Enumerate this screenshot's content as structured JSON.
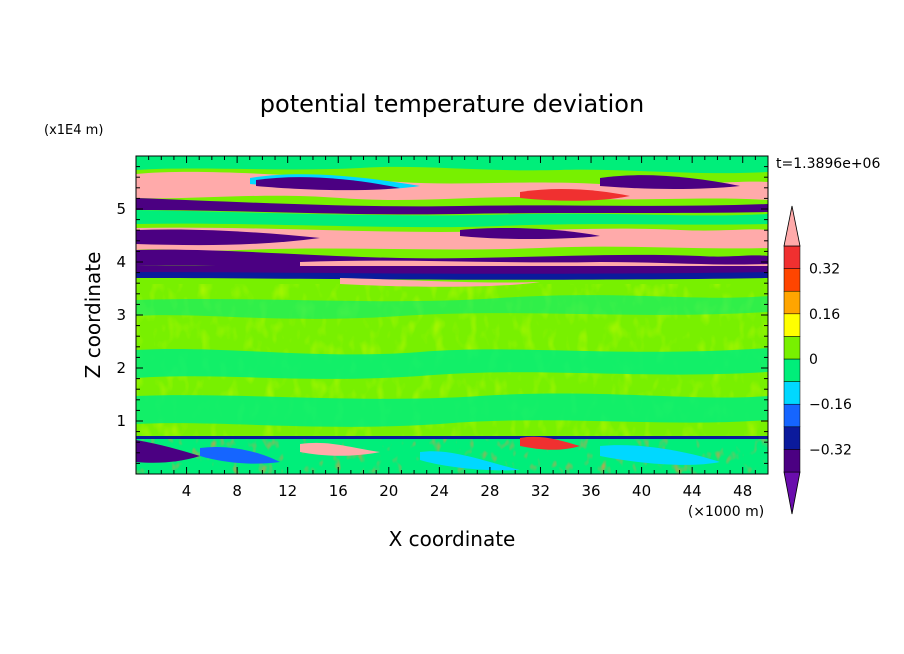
{
  "chart_data": {
    "type": "heatmap",
    "title": "potential temperature deviation",
    "xlabel": "X coordinate",
    "ylabel": "Z coordinate",
    "x_units": "(×1000 m)",
    "y_units": "(x1E4 m)",
    "time_label": "t=1.3896e+06",
    "xlim": [
      0,
      50
    ],
    "ylim": [
      0,
      6
    ],
    "x_ticks": [
      4,
      8,
      12,
      16,
      20,
      24,
      28,
      32,
      36,
      40,
      44,
      48
    ],
    "y_ticks": [
      1,
      2,
      3,
      4,
      5
    ],
    "colorbar": {
      "levels": [
        -0.48,
        -0.4,
        -0.32,
        -0.24,
        -0.16,
        -0.08,
        0,
        0.08,
        0.16,
        0.24,
        0.32,
        0.4,
        0.48
      ],
      "colors": [
        "#6a0dad",
        "#4b0082",
        "#0b1a9c",
        "#1565ff",
        "#00d8ff",
        "#00ee7a",
        "#78f000",
        "#ffff00",
        "#ffa500",
        "#ff4500",
        "#f03030",
        "#ffaaaa"
      ],
      "tick_labels": [
        "0.32",
        "0.16",
        "0",
        "-0.16",
        "-0.32"
      ],
      "tick_values": [
        0.32,
        0.16,
        0,
        -0.16,
        -0.32
      ],
      "extend": "both"
    }
  }
}
